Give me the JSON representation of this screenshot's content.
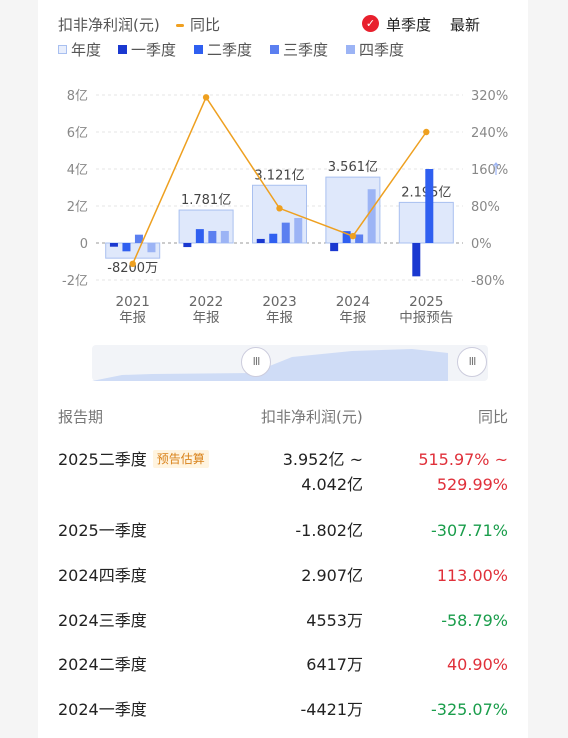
{
  "header": {
    "series_label": "扣非净利润(元)",
    "yoy_label": "同比",
    "toggle_label": "单季度",
    "latest_label": "最新"
  },
  "legend": [
    "年度",
    "一季度",
    "二季度",
    "三季度",
    "四季度"
  ],
  "colors": {
    "annual": "#dfe8fb",
    "annual_border": "#a9c0f0",
    "q1": "#1a38d0",
    "q2": "#2f5ff0",
    "q3": "#5b7ff0",
    "q4": "#9cb4f5",
    "yoy_line": "#eea020"
  },
  "chart_data": {
    "type": "bar",
    "categories": [
      [
        "2021",
        "年报"
      ],
      [
        "2022",
        "年报"
      ],
      [
        "2023",
        "年报"
      ],
      [
        "2024",
        "年报"
      ],
      [
        "2025",
        "中报预告"
      ]
    ],
    "y_left_ticks": [
      "8亿",
      "6亿",
      "4亿",
      "2亿",
      "0",
      "-2亿"
    ],
    "y_right_ticks": [
      "320%",
      "240%",
      "160%",
      "80%",
      "0%",
      "-80%"
    ],
    "ylim_left": [
      -2,
      8
    ],
    "ylim_right": [
      -80,
      320
    ],
    "annual_values": [
      -0.82,
      1.781,
      3.121,
      3.561,
      2.195
    ],
    "annual_labels": [
      "-8200万",
      "1.781亿",
      "3.121亿",
      "3.561亿",
      "2.195亿"
    ],
    "series": [
      {
        "name": "一季度",
        "values": [
          -0.2,
          -0.22,
          0.22,
          -0.44,
          -1.802
        ]
      },
      {
        "name": "二季度",
        "values": [
          -0.45,
          0.75,
          0.5,
          0.64,
          4.0
        ]
      },
      {
        "name": "三季度",
        "values": [
          0.45,
          0.65,
          1.1,
          0.46,
          null
        ]
      },
      {
        "name": "四季度",
        "values": [
          -0.5,
          0.65,
          1.35,
          2.907,
          null
        ]
      }
    ],
    "yoy_values": [
      -45,
      315,
      75,
      15,
      240
    ],
    "grid": true
  },
  "table": {
    "headers": [
      "报告期",
      "扣非净利润(元)",
      "同比"
    ],
    "rows": [
      {
        "period": "2025二季度",
        "badge": "预告估算",
        "value": [
          "3.952亿 ~",
          "4.042亿"
        ],
        "yoy": [
          "515.97% ~",
          "529.99%"
        ],
        "dir": "up"
      },
      {
        "period": "2025一季度",
        "badge": "",
        "value": [
          "-1.802亿"
        ],
        "yoy": [
          "-307.71%"
        ],
        "dir": "down"
      },
      {
        "period": "2024四季度",
        "badge": "",
        "value": [
          "2.907亿"
        ],
        "yoy": [
          "113.00%"
        ],
        "dir": "up"
      },
      {
        "period": "2024三季度",
        "badge": "",
        "value": [
          "4553万"
        ],
        "yoy": [
          "-58.79%"
        ],
        "dir": "down"
      },
      {
        "period": "2024二季度",
        "badge": "",
        "value": [
          "6417万"
        ],
        "yoy": [
          "40.90%"
        ],
        "dir": "up"
      },
      {
        "period": "2024一季度",
        "badge": "",
        "value": [
          "-4421万"
        ],
        "yoy": [
          "-325.07%"
        ],
        "dir": "down"
      }
    ]
  },
  "slider": {
    "left_handle": "III",
    "right_handle": "III"
  }
}
